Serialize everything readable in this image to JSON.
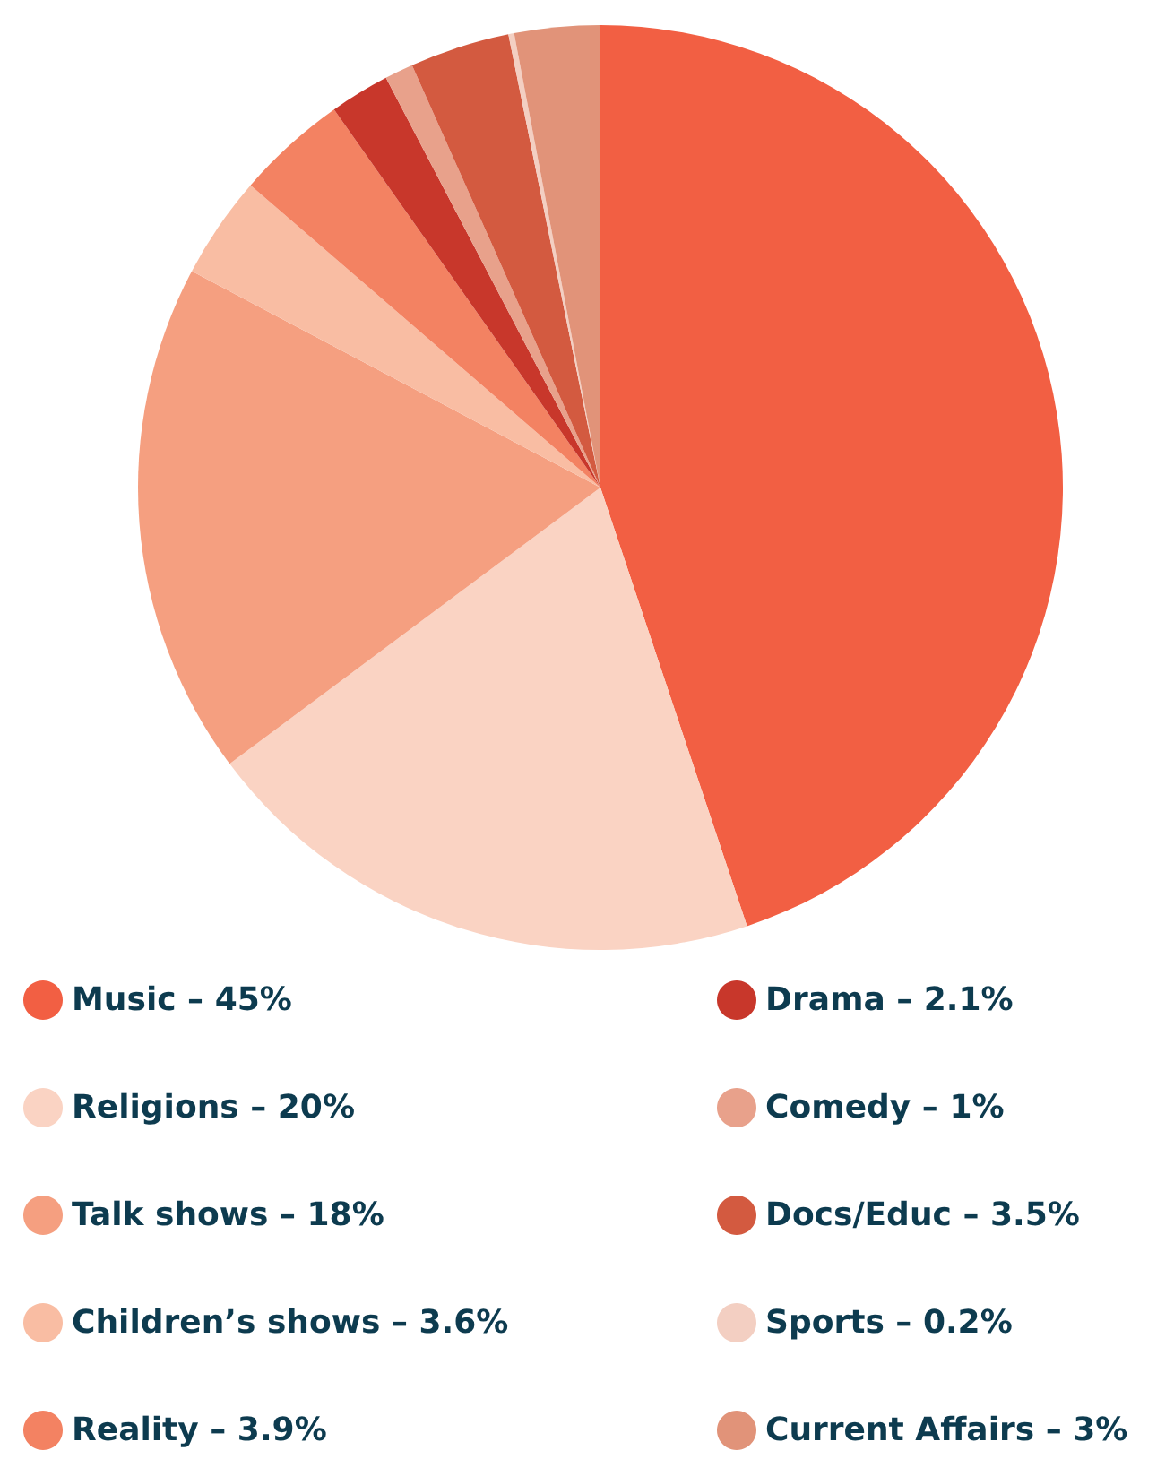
{
  "chart_data": {
    "type": "pie",
    "categories": [
      "Music – 45%",
      "Religions – 20%",
      "Talk shows – 18%",
      "Children’s shows – 3.6%",
      "Reality – 3.9%",
      "Drama – 2.1%",
      "Comedy – 1%",
      "Docs/Educ – 3.5%",
      "Sports – 0.2%",
      "Current Affairs – 3%"
    ],
    "values": [
      45,
      20,
      18,
      3.6,
      3.9,
      2.1,
      1,
      3.5,
      0.2,
      3
    ],
    "colors": [
      "#f25f43",
      "#fad3c3",
      "#f59f80",
      "#f9bda3",
      "#f38262",
      "#c8372b",
      "#e8a18b",
      "#d35a40",
      "#f3cfc2",
      "#e19379"
    ],
    "legend": "bottom"
  }
}
